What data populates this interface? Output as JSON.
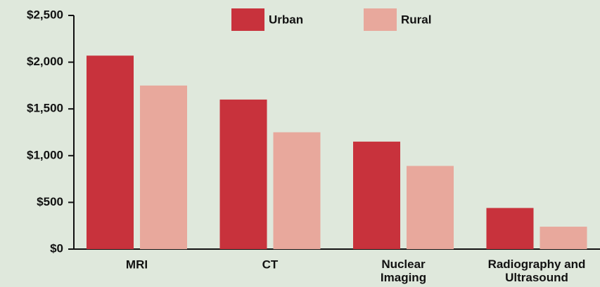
{
  "chart_data": {
    "type": "bar",
    "categories": [
      "MRI",
      "CT",
      "Nuclear Imaging",
      "Radiography and Ultrasound"
    ],
    "series": [
      {
        "name": "Urban",
        "color": "#c8323c",
        "values": [
          2070,
          1600,
          1150,
          440
        ]
      },
      {
        "name": "Rural",
        "color": "#e8a89c",
        "values": [
          1750,
          1250,
          890,
          240
        ]
      }
    ],
    "ylim": [
      0,
      2500
    ],
    "yticks": [
      {
        "value": 0,
        "label": "$0"
      },
      {
        "value": 500,
        "label": "$500"
      },
      {
        "value": 1000,
        "label": "$1,000"
      },
      {
        "value": 1500,
        "label": "$1,500"
      },
      {
        "value": 2000,
        "label": "$2,000"
      },
      {
        "value": 2500,
        "label": "$2,500"
      }
    ],
    "grid": false,
    "legend": "top"
  }
}
